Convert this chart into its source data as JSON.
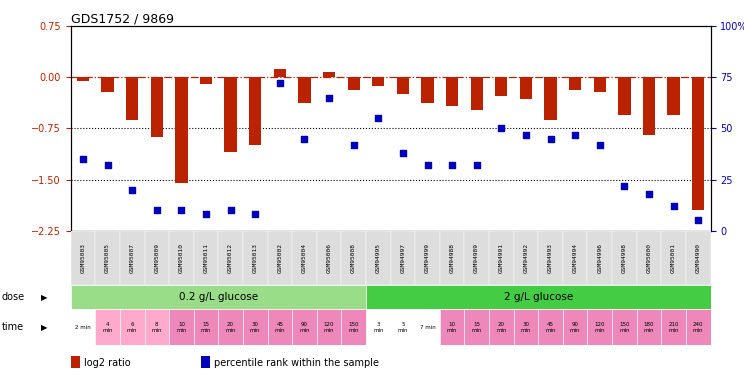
{
  "title": "GDS1752 / 9869",
  "samples": [
    "GSM95003",
    "GSM95005",
    "GSM95007",
    "GSM95009",
    "GSM95010",
    "GSM95011",
    "GSM95012",
    "GSM95013",
    "GSM95002",
    "GSM95004",
    "GSM95006",
    "GSM95008",
    "GSM94995",
    "GSM94997",
    "GSM94999",
    "GSM94988",
    "GSM94989",
    "GSM94991",
    "GSM94992",
    "GSM94993",
    "GSM94994",
    "GSM94996",
    "GSM94998",
    "GSM95000",
    "GSM95001",
    "GSM94990"
  ],
  "log2_ratio": [
    -0.05,
    -0.22,
    -0.62,
    -0.88,
    -1.55,
    -0.1,
    -1.1,
    -1.0,
    0.12,
    -0.38,
    0.08,
    -0.18,
    -0.12,
    -0.25,
    -0.38,
    -0.42,
    -0.48,
    -0.28,
    -0.32,
    -0.62,
    -0.18,
    -0.22,
    -0.55,
    -0.85,
    -0.55,
    -1.95
  ],
  "percentile": [
    35,
    32,
    20,
    10,
    10,
    8,
    10,
    8,
    72,
    45,
    65,
    42,
    55,
    38,
    32,
    32,
    32,
    50,
    47,
    45,
    47,
    42,
    22,
    18,
    12,
    5
  ],
  "ylim_left": [
    -2.25,
    0.75
  ],
  "ylim_right": [
    0,
    100
  ],
  "yticks_left": [
    0.75,
    0.0,
    -0.75,
    -1.5,
    -2.25
  ],
  "yticks_right": [
    100,
    75,
    50,
    25,
    0
  ],
  "bar_color": "#bb2200",
  "dot_color": "#0000bb",
  "hline_color": "#bb2200",
  "dotted_lines": [
    -0.75,
    -1.5
  ],
  "dose_groups": [
    {
      "label": "0.2 g/L glucose",
      "start": 0,
      "end": 12,
      "color": "#99dd88"
    },
    {
      "label": "2 g/L glucose",
      "start": 12,
      "end": 26,
      "color": "#44cc44"
    }
  ],
  "time_labels": [
    "2 min",
    "4\nmin",
    "6\nmin",
    "8\nmin",
    "10\nmin",
    "15\nmin",
    "20\nmin",
    "30\nmin",
    "45\nmin",
    "90\nmin",
    "120\nmin",
    "150\nmin",
    "3\nmin",
    "5\nmin",
    "7 min",
    "10\nmin",
    "15\nmin",
    "20\nmin",
    "30\nmin",
    "45\nmin",
    "90\nmin",
    "120\nmin",
    "150\nmin",
    "180\nmin",
    "210\nmin",
    "240\nmin"
  ],
  "time_colors": [
    "#ffffff",
    "#ffaacc",
    "#ffaacc",
    "#ffaacc",
    "#ee88bb",
    "#ee88bb",
    "#ee88bb",
    "#ee88bb",
    "#ee88bb",
    "#ee88bb",
    "#ee88bb",
    "#ee88bb",
    "#ffffff",
    "#ffffff",
    "#ffffff",
    "#ee88bb",
    "#ee88bb",
    "#ee88bb",
    "#ee88bb",
    "#ee88bb",
    "#ee88bb",
    "#ee88bb",
    "#ee88bb",
    "#ee88bb",
    "#ee88bb",
    "#ee88bb"
  ],
  "legend_items": [
    {
      "color": "#bb2200",
      "label": "log2 ratio"
    },
    {
      "color": "#0000bb",
      "label": "percentile rank within the sample"
    }
  ],
  "bg_color": "#f0f0f0"
}
